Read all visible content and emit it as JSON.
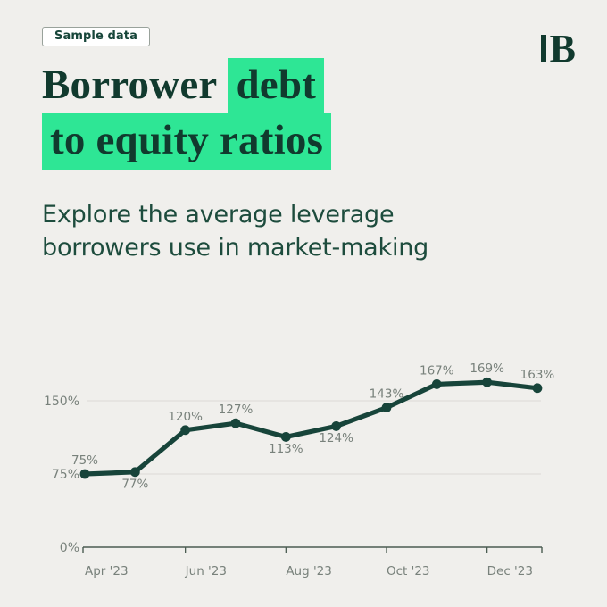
{
  "page": {
    "background": "#f0efec"
  },
  "badge": {
    "label": "Sample data"
  },
  "logo": {
    "letter": "B",
    "color": "#113a2e"
  },
  "title": {
    "line1_plain": "Borrower",
    "line1_highlight": "debt",
    "line2_highlight": "to equity ratios",
    "text_color": "#113a2e",
    "highlight_color": "#2ee695"
  },
  "subtitle": {
    "line1": "Explore the average leverage",
    "line2": "borrowers use in market-making"
  },
  "chart_data": {
    "type": "line",
    "values": [
      75,
      77,
      120,
      127,
      113,
      124,
      143,
      167,
      169,
      163
    ],
    "point_labels": [
      "75%",
      "77%",
      "120%",
      "127%",
      "113%",
      "124%",
      "143%",
      "167%",
      "169%",
      "163%"
    ],
    "label_position": [
      "above",
      "below",
      "above",
      "above",
      "below",
      "below",
      "above",
      "above",
      "above",
      "above"
    ],
    "x_tick_labels": [
      "Apr '23",
      "Jun '23",
      "Aug '23",
      "Oct '23",
      "Dec '23"
    ],
    "x_tick_point_indices": [
      0,
      2,
      4,
      6,
      8
    ],
    "y_ticks": [
      {
        "label": "0%",
        "value": 0
      },
      {
        "label": "75%",
        "value": 75
      },
      {
        "label": "150%",
        "value": 150
      }
    ],
    "ylim": [
      0,
      185
    ],
    "grid": "horizontal-only",
    "legend": "none",
    "line_color": "#17443a",
    "point_color": "#17443a",
    "label_color": "#78817b",
    "gridline_color": "#dbdad6",
    "axis_color": "#4a5c51"
  }
}
